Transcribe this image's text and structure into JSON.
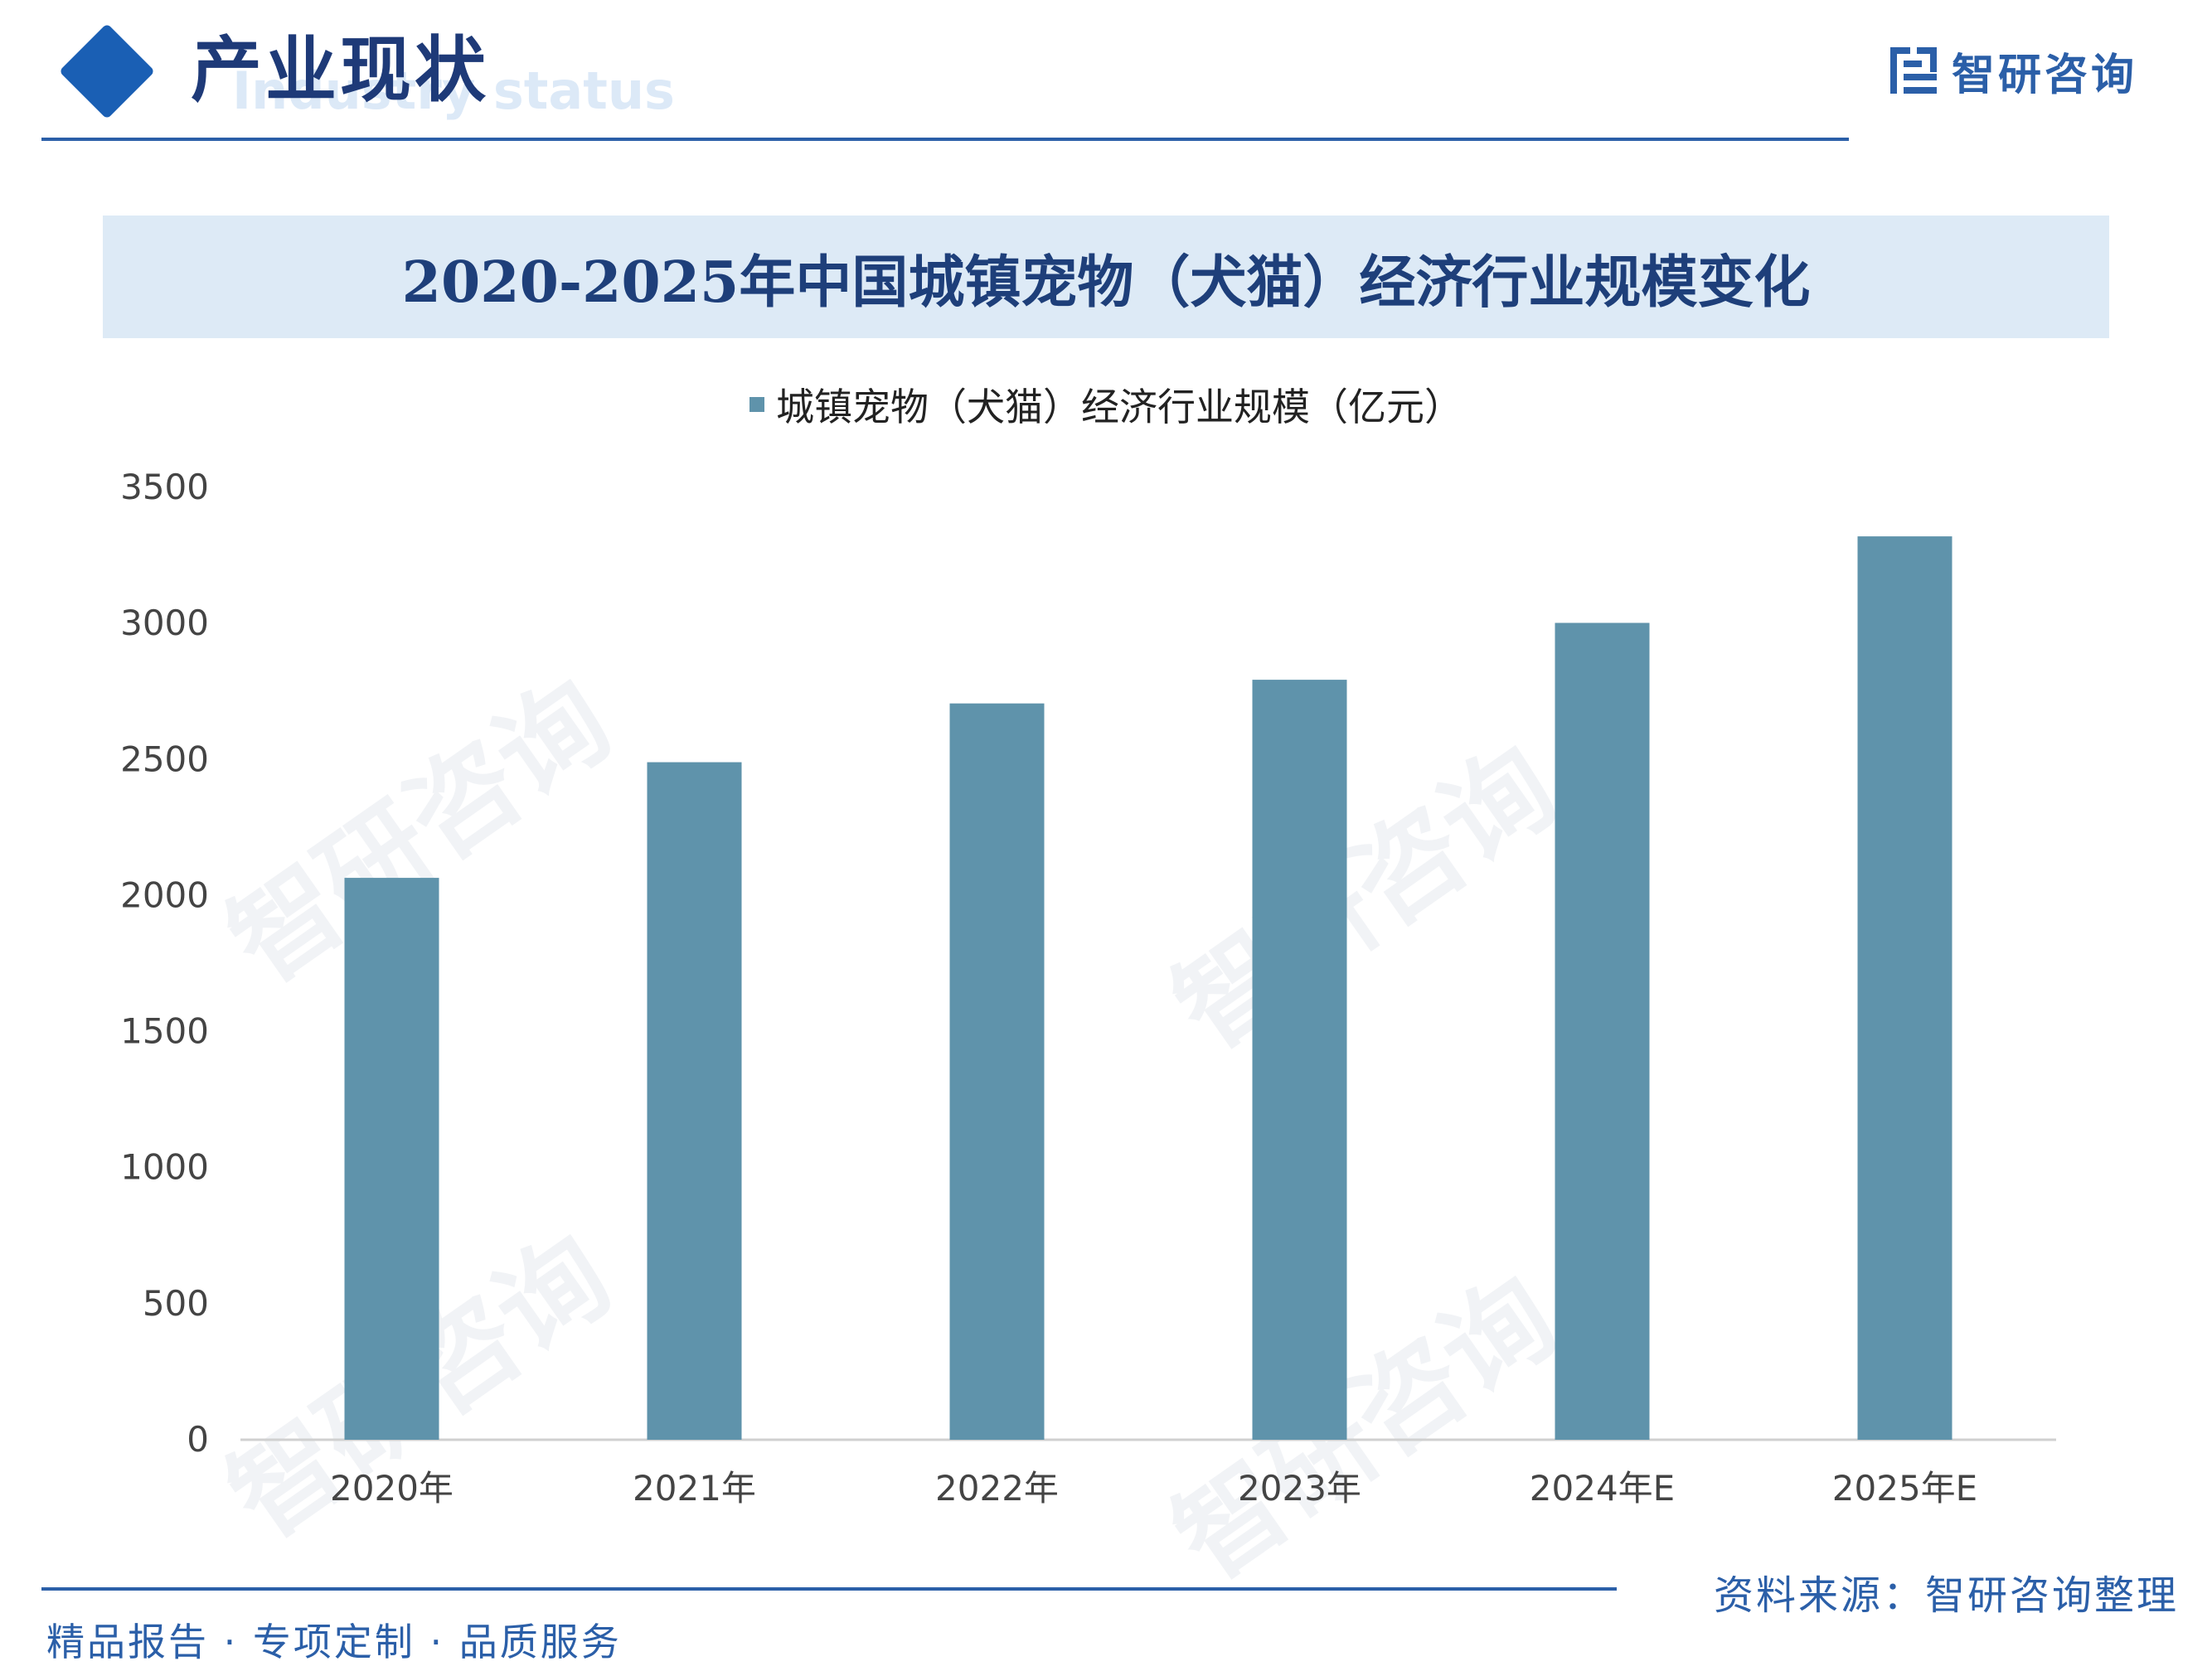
{
  "header": {
    "section_title": "产业现状",
    "section_subtitle": "Industry status",
    "brand_name": "智研咨询"
  },
  "chart_data": {
    "type": "bar",
    "title": "2020-2025年中国城镇宠物（犬猫）经济行业规模变化",
    "categories": [
      "2020年",
      "2021年",
      "2022年",
      "2023年",
      "2024年E",
      "2025年E"
    ],
    "series": [
      {
        "name": "城镇宠物（犬猫）经济行业规模（亿元）",
        "values": [
          2065,
          2490,
          2706,
          2793,
          3002,
          3320
        ]
      }
    ],
    "ylim": [
      0,
      3500
    ],
    "yticks": [
      0,
      500,
      1000,
      1500,
      2000,
      2500,
      3000,
      3500
    ],
    "xlabel": "",
    "ylabel": "",
    "legend": "top-center",
    "grid": false,
    "bar_color": "#5f93ab"
  },
  "watermark": {
    "text": "智研咨询"
  },
  "footer": {
    "left": "精品报告 · 专项定制 · 品质服务",
    "source": "资料来源：智研咨询整理"
  },
  "colors": {
    "accent": "#2b5fa8",
    "title": "#1e3f7a",
    "band": "#ddeaf6"
  }
}
